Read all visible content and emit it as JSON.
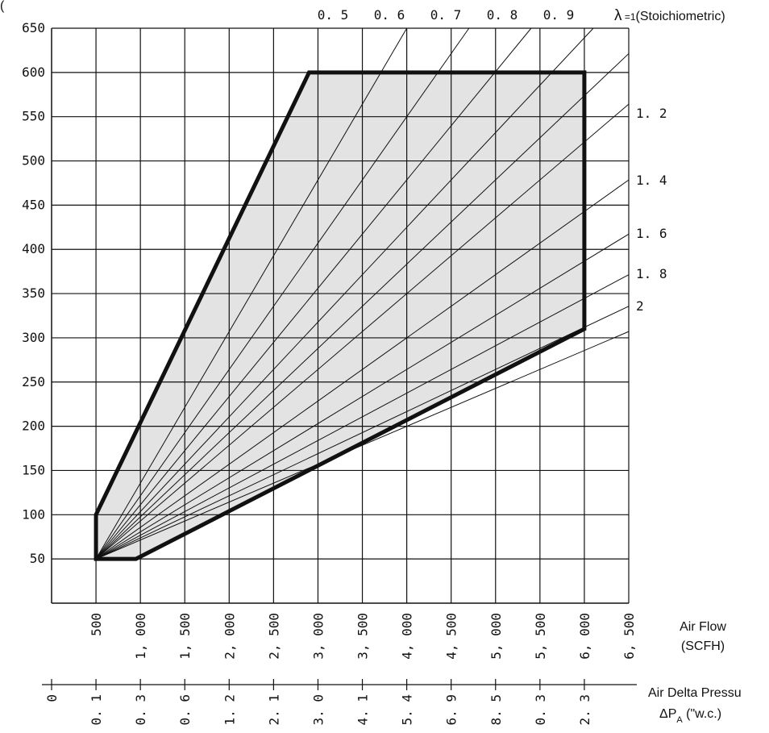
{
  "chart_data": {
    "type": "line",
    "xlabel": [
      "Air Flow",
      "(SCFH)"
    ],
    "x2label": [
      "Air Delta Pressu",
      "ΔPA (\"w.c.)"
    ],
    "x2label_sub": "A",
    "ylabel_fragment": "(",
    "xlim": [
      0,
      6500
    ],
    "ylim": [
      0,
      650
    ],
    "grid": true,
    "x_ticks": [
      500,
      1000,
      1500,
      2000,
      2500,
      3000,
      3500,
      4000,
      4500,
      5000,
      5500,
      6000,
      6500
    ],
    "x_tick_labels": [
      "500",
      "1, 000",
      "1, 500",
      "2, 000",
      "2, 500",
      "3, 000",
      "3, 500",
      "4, 000",
      "4, 500",
      "5, 000",
      "5, 500",
      "6, 000",
      "6, 500"
    ],
    "y_ticks": [
      50,
      100,
      150,
      200,
      250,
      300,
      350,
      400,
      450,
      500,
      550,
      600,
      650
    ],
    "y_tick_labels": [
      "50",
      "100",
      "150",
      "200",
      "250",
      "300",
      "350",
      "400",
      "450",
      "500",
      "550",
      "600",
      "650"
    ],
    "x2_ticks": [
      0,
      500,
      1000,
      1500,
      2000,
      2500,
      3000,
      3500,
      4000,
      4500,
      5000,
      5500,
      6000
    ],
    "x2_tick_labels": [
      "0",
      "0. 1",
      "0. 3",
      "0. 6",
      "1. 2",
      "2. 1",
      "3. 0",
      "4. 1",
      "5. 4",
      "6. 9",
      "8. 5",
      "0. 3",
      "2. 3"
    ],
    "lambda_symbol": "λ",
    "lambda_prefix": " =",
    "lambda_lines": [
      {
        "label": "0. 5",
        "ratio": 0.5,
        "position": "top"
      },
      {
        "label": "0. 6",
        "ratio": 0.6,
        "position": "top"
      },
      {
        "label": "0. 7",
        "ratio": 0.7,
        "position": "top"
      },
      {
        "label": "0. 8",
        "ratio": 0.8,
        "position": "top"
      },
      {
        "label": "0. 9",
        "ratio": 0.9,
        "position": "top"
      },
      {
        "label": "1",
        "ratio": 1.0,
        "position": "top",
        "suffix": "(Stoichiometric)"
      },
      {
        "label": "1. 2",
        "ratio": 1.2,
        "position": "right"
      },
      {
        "label": "1. 4",
        "ratio": 1.4,
        "position": "right"
      },
      {
        "label": "1. 6",
        "ratio": 1.6,
        "position": "right"
      },
      {
        "label": "1. 8",
        "ratio": 1.8,
        "position": "right"
      },
      {
        "label": "2",
        "ratio": 2.0,
        "position": "right"
      }
    ],
    "operating_region": [
      {
        "x": 500,
        "y": 50
      },
      {
        "x": 500,
        "y": 100
      },
      {
        "x": 2900,
        "y": 600
      },
      {
        "x": 6000,
        "y": 600
      },
      {
        "x": 6000,
        "y": 310
      },
      {
        "x": 950,
        "y": 50
      }
    ],
    "colors": {
      "region_fill": "#e3e3e3",
      "line": "#111111",
      "grid": "#111111"
    }
  }
}
